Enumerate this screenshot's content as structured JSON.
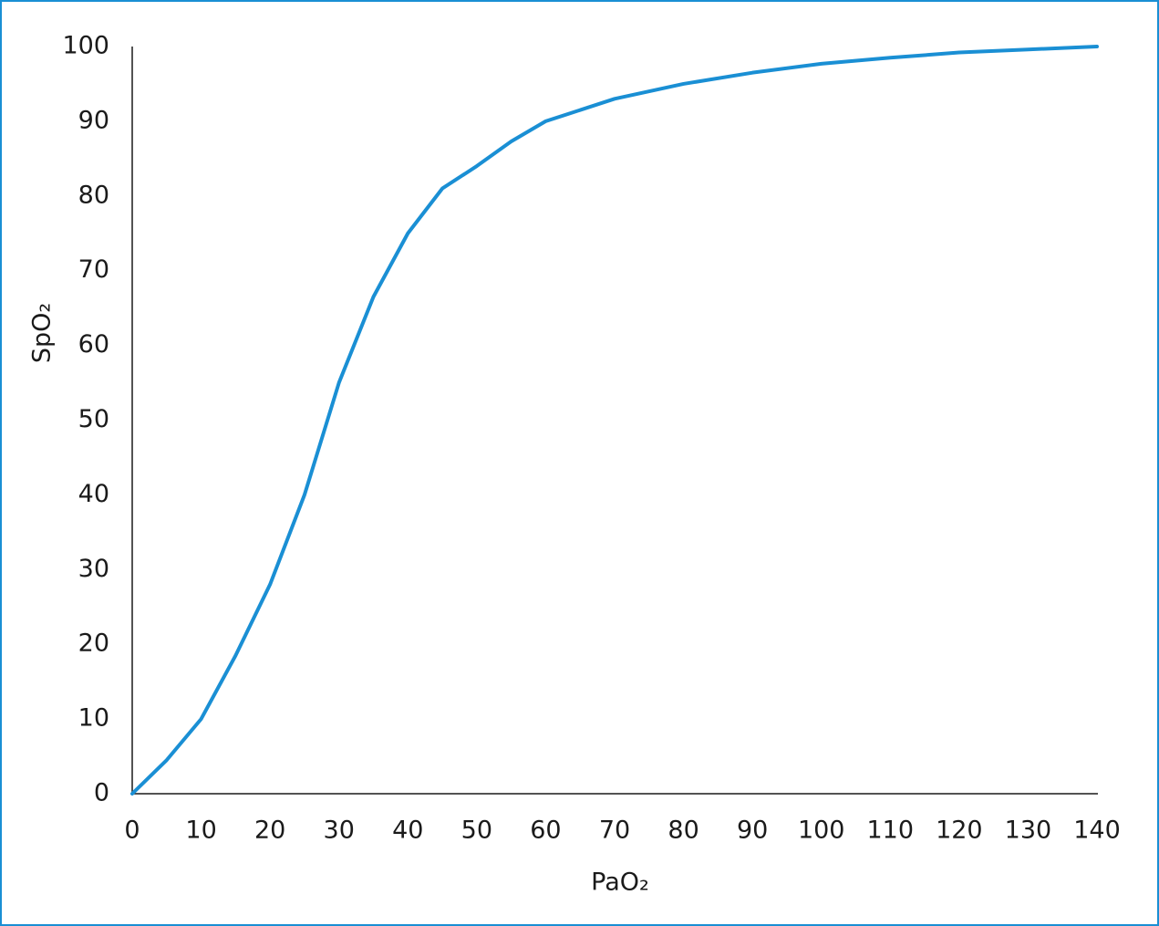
{
  "chart_data": {
    "type": "line",
    "x_label": "PaO₂",
    "y_label": "SpO₂",
    "x": [
      0,
      5,
      10,
      15,
      20,
      25,
      30,
      35,
      40,
      45,
      50,
      55,
      60,
      70,
      80,
      90,
      100,
      110,
      120,
      130,
      140
    ],
    "series": [
      {
        "color": "#1a8fd4",
        "values": [
          0,
          4.5,
          10,
          18.5,
          28,
          40,
          55,
          66.5,
          75,
          81,
          84,
          87.3,
          90,
          93,
          95,
          96.5,
          97.7,
          98.5,
          99.2,
          99.6,
          100
        ]
      }
    ],
    "xlim": [
      0,
      140
    ],
    "xticks": [
      0,
      10,
      20,
      30,
      40,
      50,
      60,
      70,
      80,
      90,
      100,
      110,
      120,
      130,
      140
    ],
    "ylim": [
      0,
      100
    ],
    "yticks": [
      0,
      10,
      20,
      30,
      40,
      50,
      60,
      70,
      80,
      90,
      100
    ],
    "grid": false
  }
}
